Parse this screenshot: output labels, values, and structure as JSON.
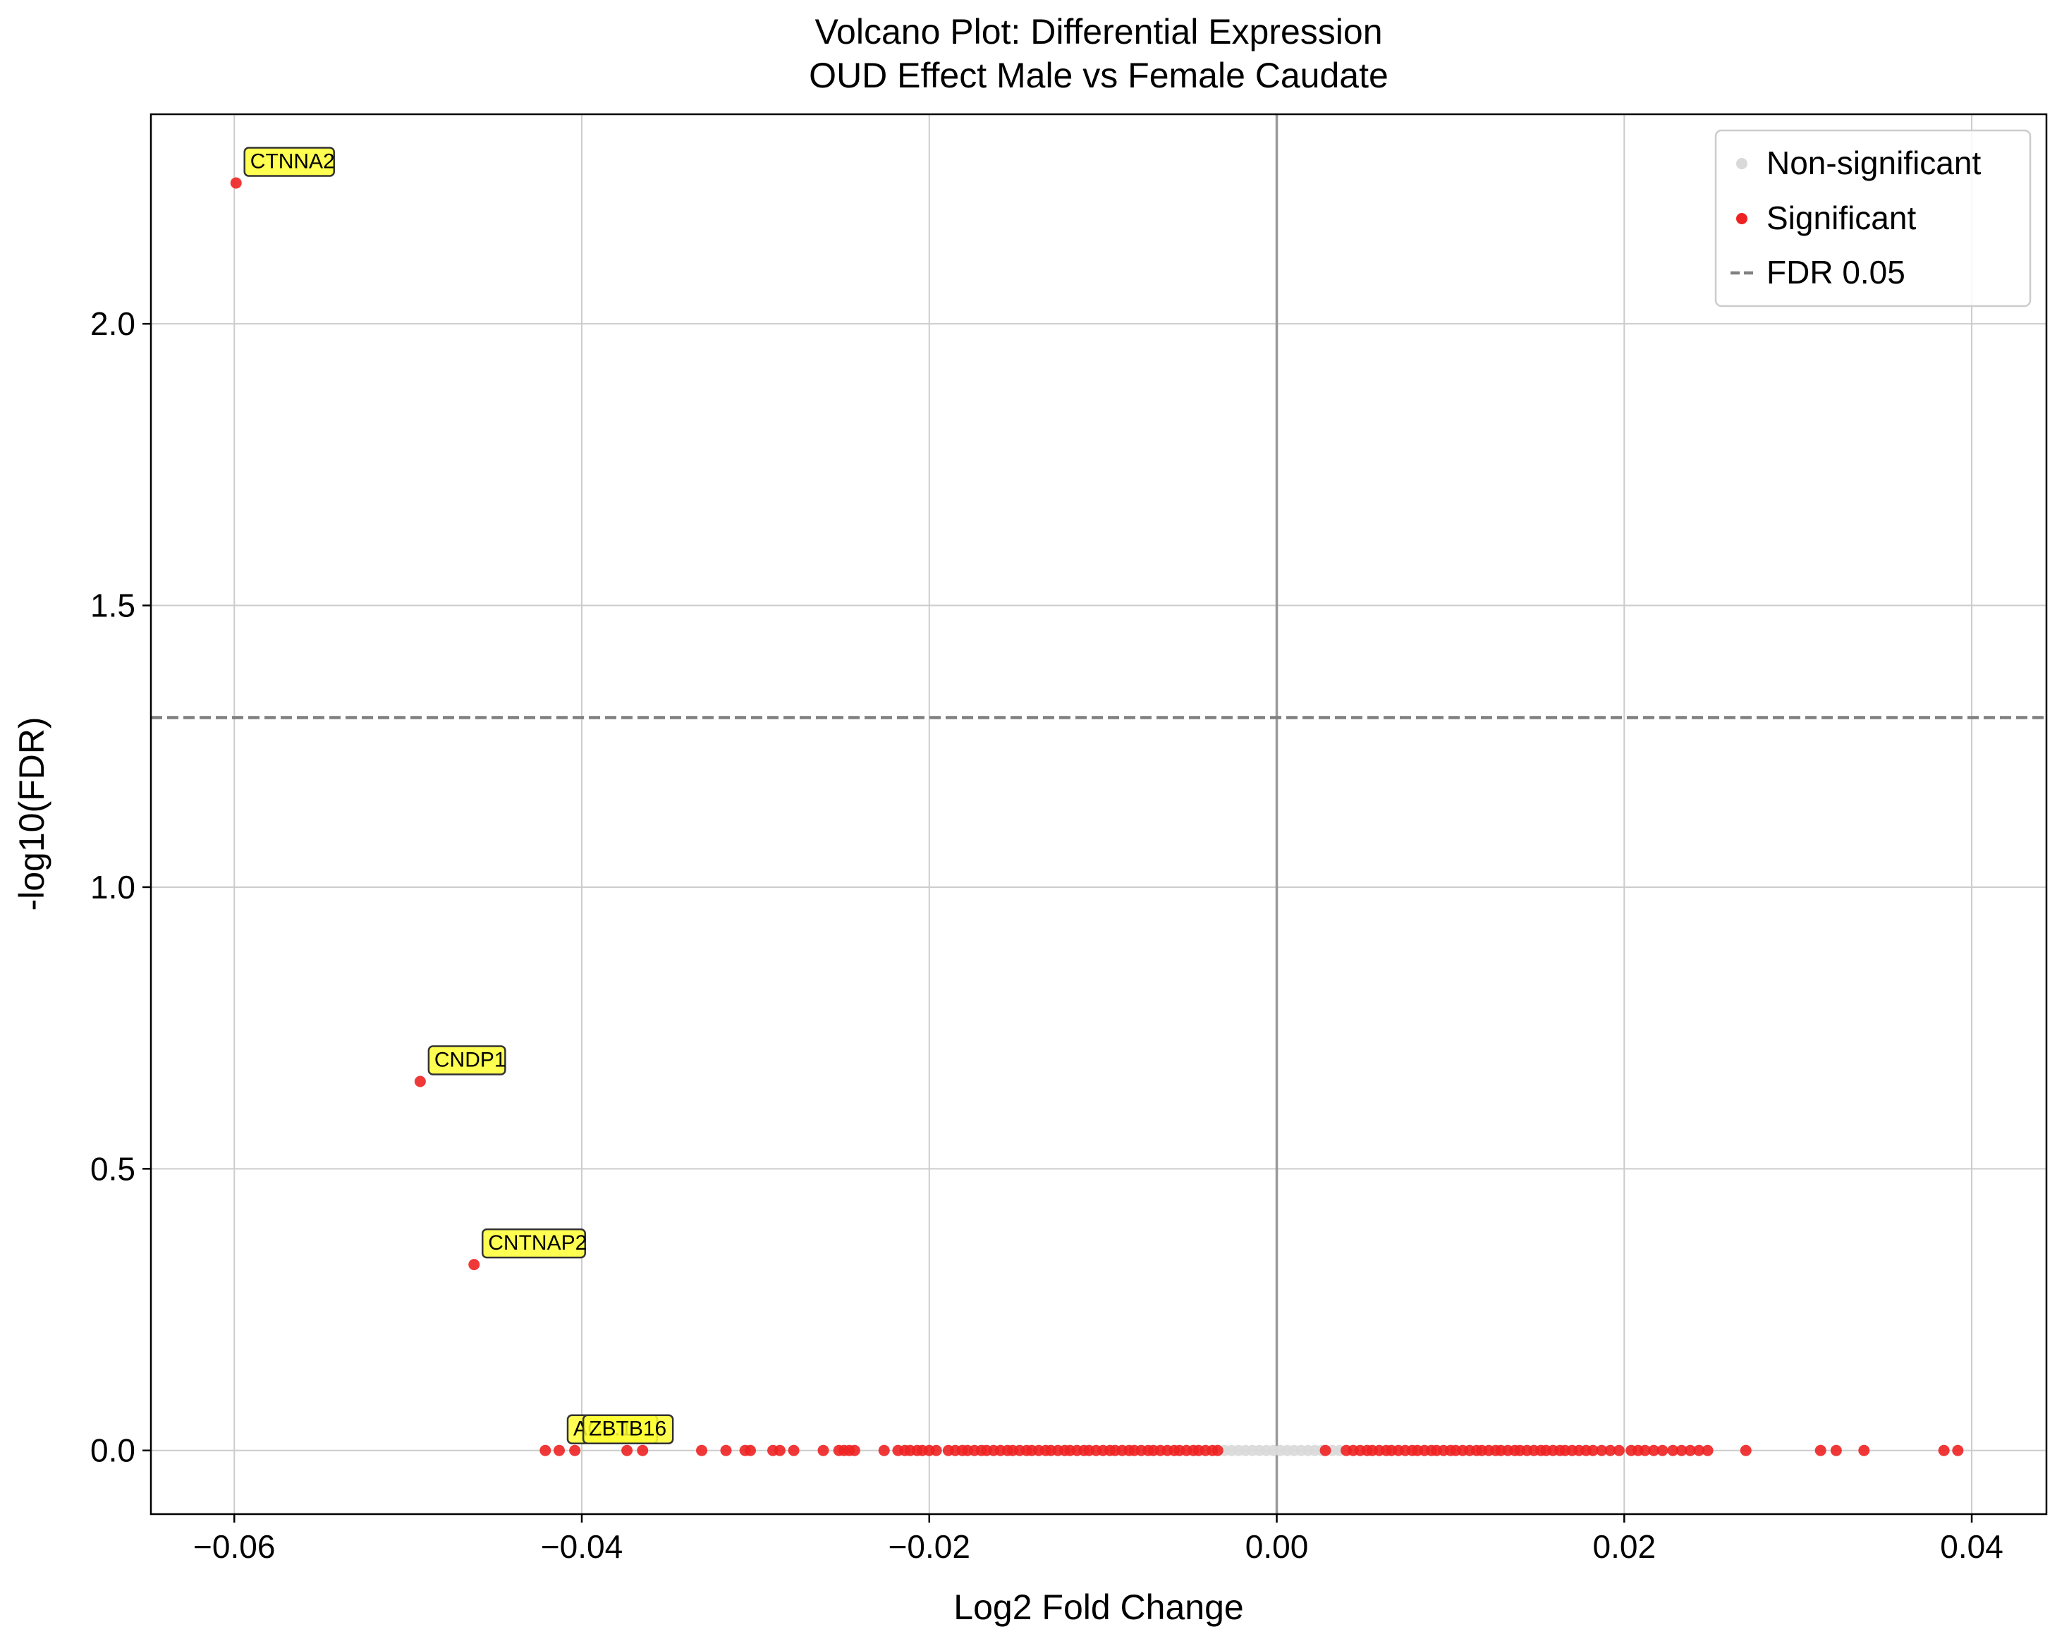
{
  "chart_data": {
    "type": "scatter",
    "title": "Volcano Plot: Differential Expression",
    "subtitle": "OUD Effect Male vs Female Caudate",
    "xlabel": "Log2 Fold Change",
    "ylabel": "-log10(FDR)",
    "xlim": [
      -0.0648,
      0.0443
    ],
    "ylim": [
      -0.113,
      2.372
    ],
    "xticks": [
      -0.06,
      -0.04,
      -0.02,
      0.0,
      0.02,
      0.04
    ],
    "xtick_labels": [
      "−0.06",
      "−0.04",
      "−0.02",
      "0.00",
      "0.02",
      "0.04"
    ],
    "yticks": [
      0.0,
      0.5,
      1.0,
      1.5,
      2.0
    ],
    "ytick_labels": [
      "0.0",
      "0.5",
      "1.0",
      "1.5",
      "2.0"
    ],
    "grid": true,
    "fdr_threshold": 1.301,
    "legend_position": "top-right",
    "legend": [
      {
        "label": "Non-significant",
        "marker": "dot",
        "color": "#d9d9d9"
      },
      {
        "label": "Significant",
        "marker": "dot",
        "color": "#ee2222"
      },
      {
        "label": "FDR 0.05",
        "marker": "dashed-line",
        "color": "#808080"
      }
    ],
    "series": [
      {
        "name": "Significant",
        "color": "#ee2222",
        "x": [
          -0.0599,
          -0.0493,
          -0.0462,
          -0.0421,
          -0.0413,
          -0.0404,
          -0.0374,
          -0.0365,
          -0.0331,
          -0.0317,
          -0.0306,
          -0.0303,
          -0.029,
          -0.0286,
          -0.0278,
          -0.0261,
          -0.0252,
          -0.0249,
          -0.0246,
          -0.0243,
          -0.0226,
          -0.0218,
          -0.0214,
          -0.0211,
          -0.0207,
          -0.0204,
          -0.02,
          -0.0196,
          -0.0189,
          -0.0185,
          -0.0181,
          -0.0178,
          -0.0174,
          -0.017,
          -0.0167,
          -0.0163,
          -0.0159,
          -0.0155,
          -0.0152,
          -0.0148,
          -0.0144,
          -0.0141,
          -0.0137,
          -0.0133,
          -0.013,
          -0.0126,
          -0.0122,
          -0.0119,
          -0.0115,
          -0.0111,
          -0.0108,
          -0.0104,
          -0.01,
          -0.0096,
          -0.0093,
          -0.0089,
          -0.0085,
          -0.0082,
          -0.0078,
          -0.0074,
          -0.0071,
          -0.0067,
          -0.0063,
          -0.0059,
          -0.0056,
          -0.0052,
          -0.0048,
          -0.0045,
          -0.0041,
          -0.0037,
          -0.0034,
          0.0028,
          0.004,
          0.0044,
          0.0048,
          0.0052,
          0.0055,
          0.0059,
          0.0063,
          0.0066,
          0.007,
          0.0074,
          0.0078,
          0.0081,
          0.0085,
          0.0089,
          0.0092,
          0.0096,
          0.01,
          0.0103,
          0.0107,
          0.0111,
          0.0115,
          0.0118,
          0.0122,
          0.0126,
          0.0129,
          0.0133,
          0.0137,
          0.014,
          0.0144,
          0.0148,
          0.0152,
          0.0155,
          0.0159,
          0.0163,
          0.0166,
          0.017,
          0.0174,
          0.0178,
          0.0182,
          0.0187,
          0.0192,
          0.0197,
          0.0204,
          0.0208,
          0.0212,
          0.0217,
          0.0222,
          0.0228,
          0.0233,
          0.0238,
          0.0243,
          0.0248,
          0.027,
          0.0313,
          0.0322,
          0.0338,
          0.0384,
          0.0392
        ],
        "y": [
          2.25,
          0.655,
          0.33,
          0.0,
          0.0,
          0.0,
          0.0,
          0.0,
          0.0,
          0.0,
          0.0,
          0.0,
          0.0,
          0.0,
          0.0,
          0.0,
          0.0,
          0.0,
          0.0,
          0.0,
          0.0,
          0.0,
          0.0,
          0.0,
          0.0,
          0.0,
          0.0,
          0.0,
          0.0,
          0.0,
          0.0,
          0.0,
          0.0,
          0.0,
          0.0,
          0.0,
          0.0,
          0.0,
          0.0,
          0.0,
          0.0,
          0.0,
          0.0,
          0.0,
          0.0,
          0.0,
          0.0,
          0.0,
          0.0,
          0.0,
          0.0,
          0.0,
          0.0,
          0.0,
          0.0,
          0.0,
          0.0,
          0.0,
          0.0,
          0.0,
          0.0,
          0.0,
          0.0,
          0.0,
          0.0,
          0.0,
          0.0,
          0.0,
          0.0,
          0.0,
          0.0,
          0.0,
          0.0,
          0.0,
          0.0,
          0.0,
          0.0,
          0.0,
          0.0,
          0.0,
          0.0,
          0.0,
          0.0,
          0.0,
          0.0,
          0.0,
          0.0,
          0.0,
          0.0,
          0.0,
          0.0,
          0.0,
          0.0,
          0.0,
          0.0,
          0.0,
          0.0,
          0.0,
          0.0,
          0.0,
          0.0,
          0.0,
          0.0,
          0.0,
          0.0,
          0.0,
          0.0,
          0.0,
          0.0,
          0.0,
          0.0,
          0.0,
          0.0,
          0.0,
          0.0,
          0.0,
          0.0,
          0.0,
          0.0,
          0.0,
          0.0,
          0.0,
          0.0,
          0.0,
          0.0,
          0.0,
          0.0,
          0.0,
          0.0,
          0.0
        ]
      },
      {
        "name": "Non-significant",
        "color": "#d9d9d9",
        "x": [
          -0.003,
          -0.0026,
          -0.0022,
          -0.0018,
          -0.0014,
          -0.001,
          -0.0006,
          -0.0002,
          0.0002,
          0.0006,
          0.001,
          0.0014,
          0.0018,
          0.0022,
          0.0026,
          0.0032,
          0.0036
        ],
        "y": [
          0.0,
          0.0,
          0.0,
          0.0,
          0.0,
          0.0,
          0.0,
          0.0,
          0.0,
          0.0,
          0.0,
          0.0,
          0.0,
          0.0,
          0.0,
          0.0,
          0.0
        ]
      }
    ],
    "annotations": [
      {
        "text": "CTNNA2",
        "x": -0.0599,
        "y": 2.25
      },
      {
        "text": "CNDP1",
        "x": -0.0493,
        "y": 0.655
      },
      {
        "text": "CNTNAP2",
        "x": -0.0462,
        "y": 0.33
      },
      {
        "text": "AC...1",
        "x": -0.0413,
        "y": 0.0
      },
      {
        "text": "ZBTB16",
        "x": -0.0404,
        "y": 0.0
      }
    ]
  }
}
